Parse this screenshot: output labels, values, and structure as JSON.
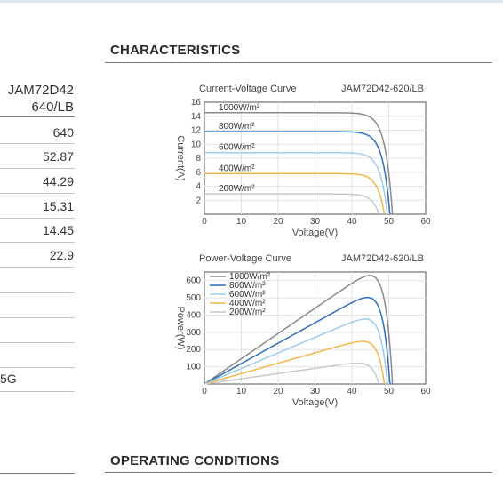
{
  "sections": {
    "characteristics": "CHARACTERISTICS",
    "operating_conditions": "OPERATING CONDITIONS"
  },
  "table": {
    "header_line1": "JAM72D42",
    "header_line2": "640/LB",
    "values": [
      "640",
      "52.87",
      "44.29",
      "15.31",
      "14.45",
      "22.9"
    ],
    "footer_text": "5G"
  },
  "chart_data": [
    {
      "type": "line",
      "title": "Current-Voltage Curve",
      "subtitle": "JAM72D42-620/LB",
      "xlabel": "Voltage(V)",
      "ylabel": "Current(A)",
      "xlim": [
        0,
        60
      ],
      "ylim": [
        0,
        16
      ],
      "xticks": [
        0,
        10,
        20,
        30,
        40,
        50,
        60
      ],
      "yticks": [
        2,
        4,
        6,
        8,
        10,
        12,
        14,
        16
      ],
      "grid": true,
      "legend_position": "left-inside",
      "series": [
        {
          "name": "1000W/m²",
          "color": "#8a8a8a",
          "isc": 14.5,
          "voc": 51.0
        },
        {
          "name": "800W/m²",
          "color": "#2f6fb7",
          "isc": 11.8,
          "voc": 50.3
        },
        {
          "name": "600W/m²",
          "color": "#9ecdeb",
          "isc": 8.8,
          "voc": 49.6
        },
        {
          "name": "400W/m²",
          "color": "#f0b74a",
          "isc": 5.8,
          "voc": 48.8
        },
        {
          "name": "200W/m²",
          "color": "#c8c8c8",
          "isc": 2.9,
          "voc": 47.3
        }
      ]
    },
    {
      "type": "line",
      "title": "Power-Voltage Curve",
      "subtitle": "JAM72D42-620/LB",
      "xlabel": "Voltage(V)",
      "ylabel": "Power(W)",
      "xlim": [
        0,
        60
      ],
      "ylim": [
        0,
        650
      ],
      "xticks": [
        0,
        10,
        20,
        30,
        40,
        50,
        60
      ],
      "yticks": [
        100,
        200,
        300,
        400,
        500,
        600
      ],
      "grid": true,
      "legend_position": "top-left-inside",
      "series": [
        {
          "name": "1000W/m²",
          "color": "#8a8a8a",
          "isc": 14.5,
          "voc": 51.0,
          "peak_voltage": 43.0,
          "peak_power": 620
        },
        {
          "name": "800W/m²",
          "color": "#2f6fb7",
          "isc": 11.8,
          "voc": 50.3,
          "peak_voltage": 42.5,
          "peak_power": 495
        },
        {
          "name": "600W/m²",
          "color": "#9ecdeb",
          "isc": 8.8,
          "voc": 49.6,
          "peak_voltage": 42.0,
          "peak_power": 372
        },
        {
          "name": "400W/m²",
          "color": "#f0b74a",
          "isc": 5.8,
          "voc": 48.8,
          "peak_voltage": 41.5,
          "peak_power": 245
        },
        {
          "name": "200W/m²",
          "color": "#c8c8c8",
          "isc": 2.9,
          "voc": 47.3,
          "peak_voltage": 40.5,
          "peak_power": 120
        }
      ]
    }
  ]
}
